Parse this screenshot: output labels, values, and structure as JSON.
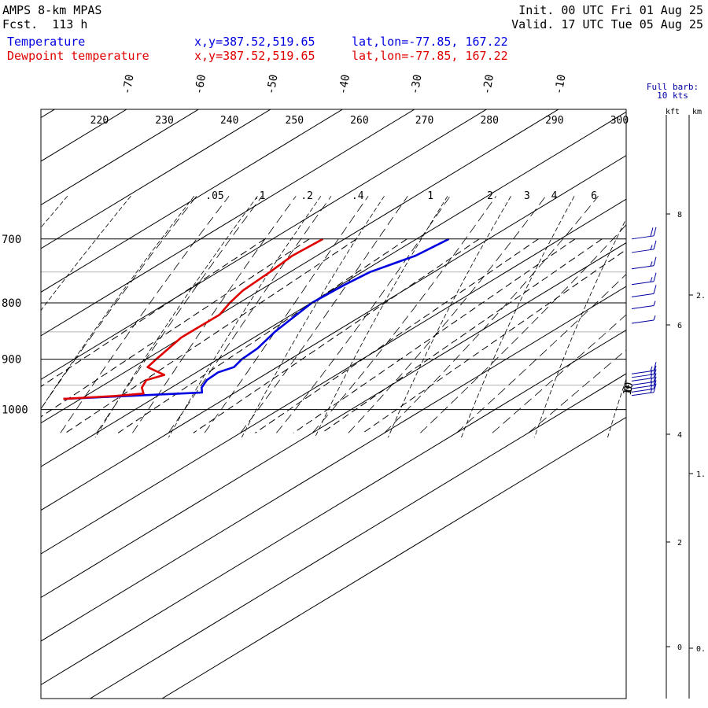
{
  "header": {
    "model": "AMPS 8-km MPAS",
    "fcst": "Fcst.  113 h",
    "init": "Init. 00 UTC Fri 01 Aug 25",
    "valid": "Valid. 17 UTC Tue 05 Aug 25"
  },
  "legend": [
    {
      "name": "Temperature",
      "xy": "x,y=387.52,519.65",
      "latlon": "lat,lon=-77.85, 167.22",
      "color": "#0000e0"
    },
    {
      "name": "Dewpoint temperature",
      "xy": "x,y=387.52,519.65",
      "latlon": "lat,lon=-77.85, 167.22",
      "color": "#e00000"
    }
  ],
  "barb_legend": {
    "line1": "Full barb:",
    "line2": "10 kts"
  },
  "height_axis": {
    "unit_kft": "kft",
    "unit_km": "km",
    "kft_ticks": [
      "8",
      "6",
      "4",
      "2",
      "0"
    ],
    "km_ticks": [
      "2.",
      "1.",
      "0."
    ]
  },
  "chart_data": {
    "type": "line",
    "diagram": "skew-T log-P",
    "pressure_ticks": [
      "700",
      "800",
      "900",
      "1000"
    ],
    "temperature_ticks": [
      "-70",
      "-60",
      "-50",
      "-40",
      "-30",
      "-20",
      "-10",
      "0",
      "10"
    ],
    "theta_labels": [
      "220",
      "230",
      "240",
      "250",
      "260",
      "270",
      "280",
      "290",
      "300"
    ],
    "mixing_ratio_labels": [
      ".05",
      ".1",
      ".2",
      ".4",
      "1",
      "2",
      "3",
      "4",
      "6"
    ],
    "series": [
      {
        "name": "Temperature",
        "color": "#0000e0",
        "points": [
          [
            700,
            -25.5
          ],
          [
            725,
            -26.3
          ],
          [
            750,
            -28.9
          ],
          [
            770,
            -29.5
          ],
          [
            800,
            -29.9
          ],
          [
            850,
            -28.4
          ],
          [
            880,
            -27.0
          ],
          [
            900,
            -26.7
          ],
          [
            915,
            -26.0
          ],
          [
            925,
            -27.0
          ],
          [
            940,
            -26.8
          ],
          [
            955,
            -25.8
          ],
          [
            965,
            -24.6
          ],
          [
            970,
            -31.6
          ],
          [
            978,
            -42.4
          ]
        ]
      },
      {
        "name": "Dewpoint temperature",
        "color": "#e00000",
        "points": [
          [
            700,
            -43.0
          ],
          [
            725,
            -43.4
          ],
          [
            750,
            -42.8
          ],
          [
            780,
            -42.3
          ],
          [
            800,
            -41.3
          ],
          [
            820,
            -40.0
          ],
          [
            860,
            -40.1
          ],
          [
            900,
            -38.6
          ],
          [
            915,
            -38.0
          ],
          [
            930,
            -33.9
          ],
          [
            940,
            -35.2
          ],
          [
            955,
            -34.1
          ],
          [
            967,
            -32.5
          ],
          [
            972,
            -36.0
          ],
          [
            978,
            -42.4
          ]
        ]
      }
    ],
    "wind_barbs": [
      {
        "p": 700,
        "speed_kt": 20
      },
      {
        "p": 720,
        "speed_kt": 15
      },
      {
        "p": 745,
        "speed_kt": 15
      },
      {
        "p": 770,
        "speed_kt": 15
      },
      {
        "p": 790,
        "speed_kt": 10
      },
      {
        "p": 810,
        "speed_kt": 5
      },
      {
        "p": 835,
        "speed_kt": 5
      },
      {
        "p": 928,
        "speed_kt": 15
      },
      {
        "p": 935,
        "speed_kt": 15
      },
      {
        "p": 942,
        "speed_kt": 15
      },
      {
        "p": 950,
        "speed_kt": 15
      },
      {
        "p": 957,
        "speed_kt": 15
      },
      {
        "p": 964,
        "speed_kt": 15
      },
      {
        "p": 971,
        "speed_kt": 15
      }
    ]
  }
}
